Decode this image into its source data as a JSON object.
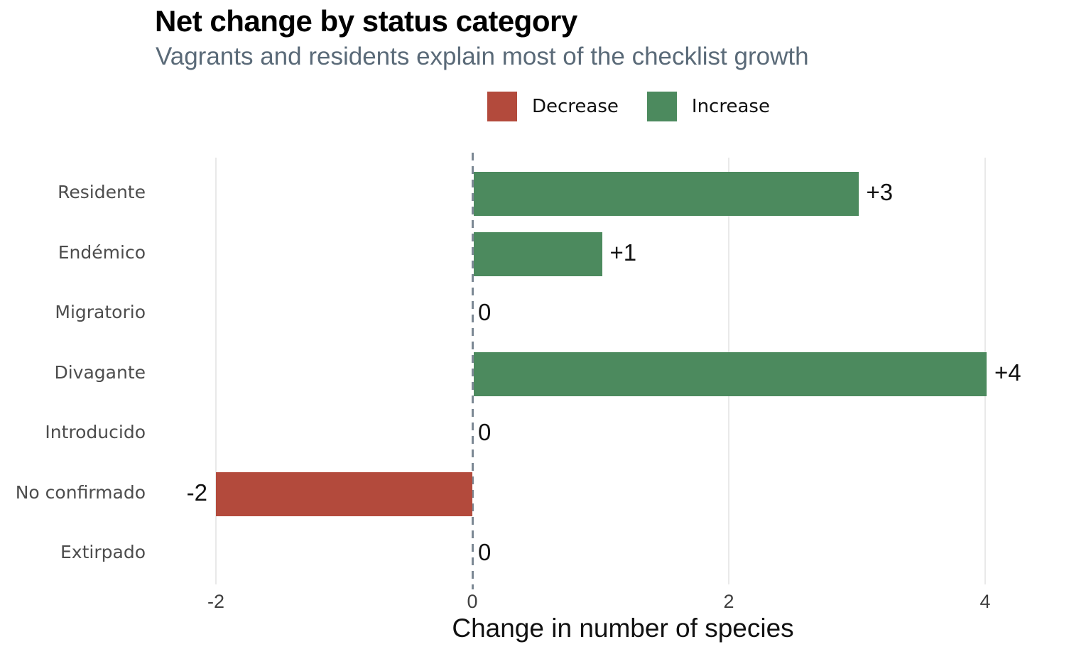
{
  "chart_data": {
    "type": "bar",
    "orientation": "horizontal",
    "title": "Net change by status category",
    "subtitle": "Vagrants and residents explain most of the checklist growth",
    "xlabel": "Change in number of species",
    "categories": [
      "Residente",
      "Endémico",
      "Migratorio",
      "Divagante",
      "Introducido",
      "No confirmado",
      "Extirpado"
    ],
    "values": [
      3,
      1,
      0,
      4,
      0,
      -2,
      0
    ],
    "value_labels": [
      "+3",
      "+1",
      "0",
      "+4",
      "0",
      "-2",
      "0"
    ],
    "x_ticks": [
      -2,
      0,
      2,
      4
    ],
    "x_tick_labels": [
      "-2",
      "0",
      "2",
      "4"
    ],
    "xlim": [
      -2.35,
      4.7
    ],
    "grid": "vertical-at-ticks",
    "zero_line": "dashed",
    "legend_position": "top-center",
    "legend": [
      {
        "label": "Decrease",
        "color": "#b34a3c"
      },
      {
        "label": "Increase",
        "color": "#4c8a5e"
      }
    ],
    "colors": {
      "increase": "#4c8a5e",
      "decrease": "#b34a3c",
      "grid": "#e9e9e9",
      "zero_line": "#7c8894",
      "subtitle": "#5a6a78",
      "category_label": "#4d4d4d",
      "tick_label": "#3f3f3f"
    }
  }
}
